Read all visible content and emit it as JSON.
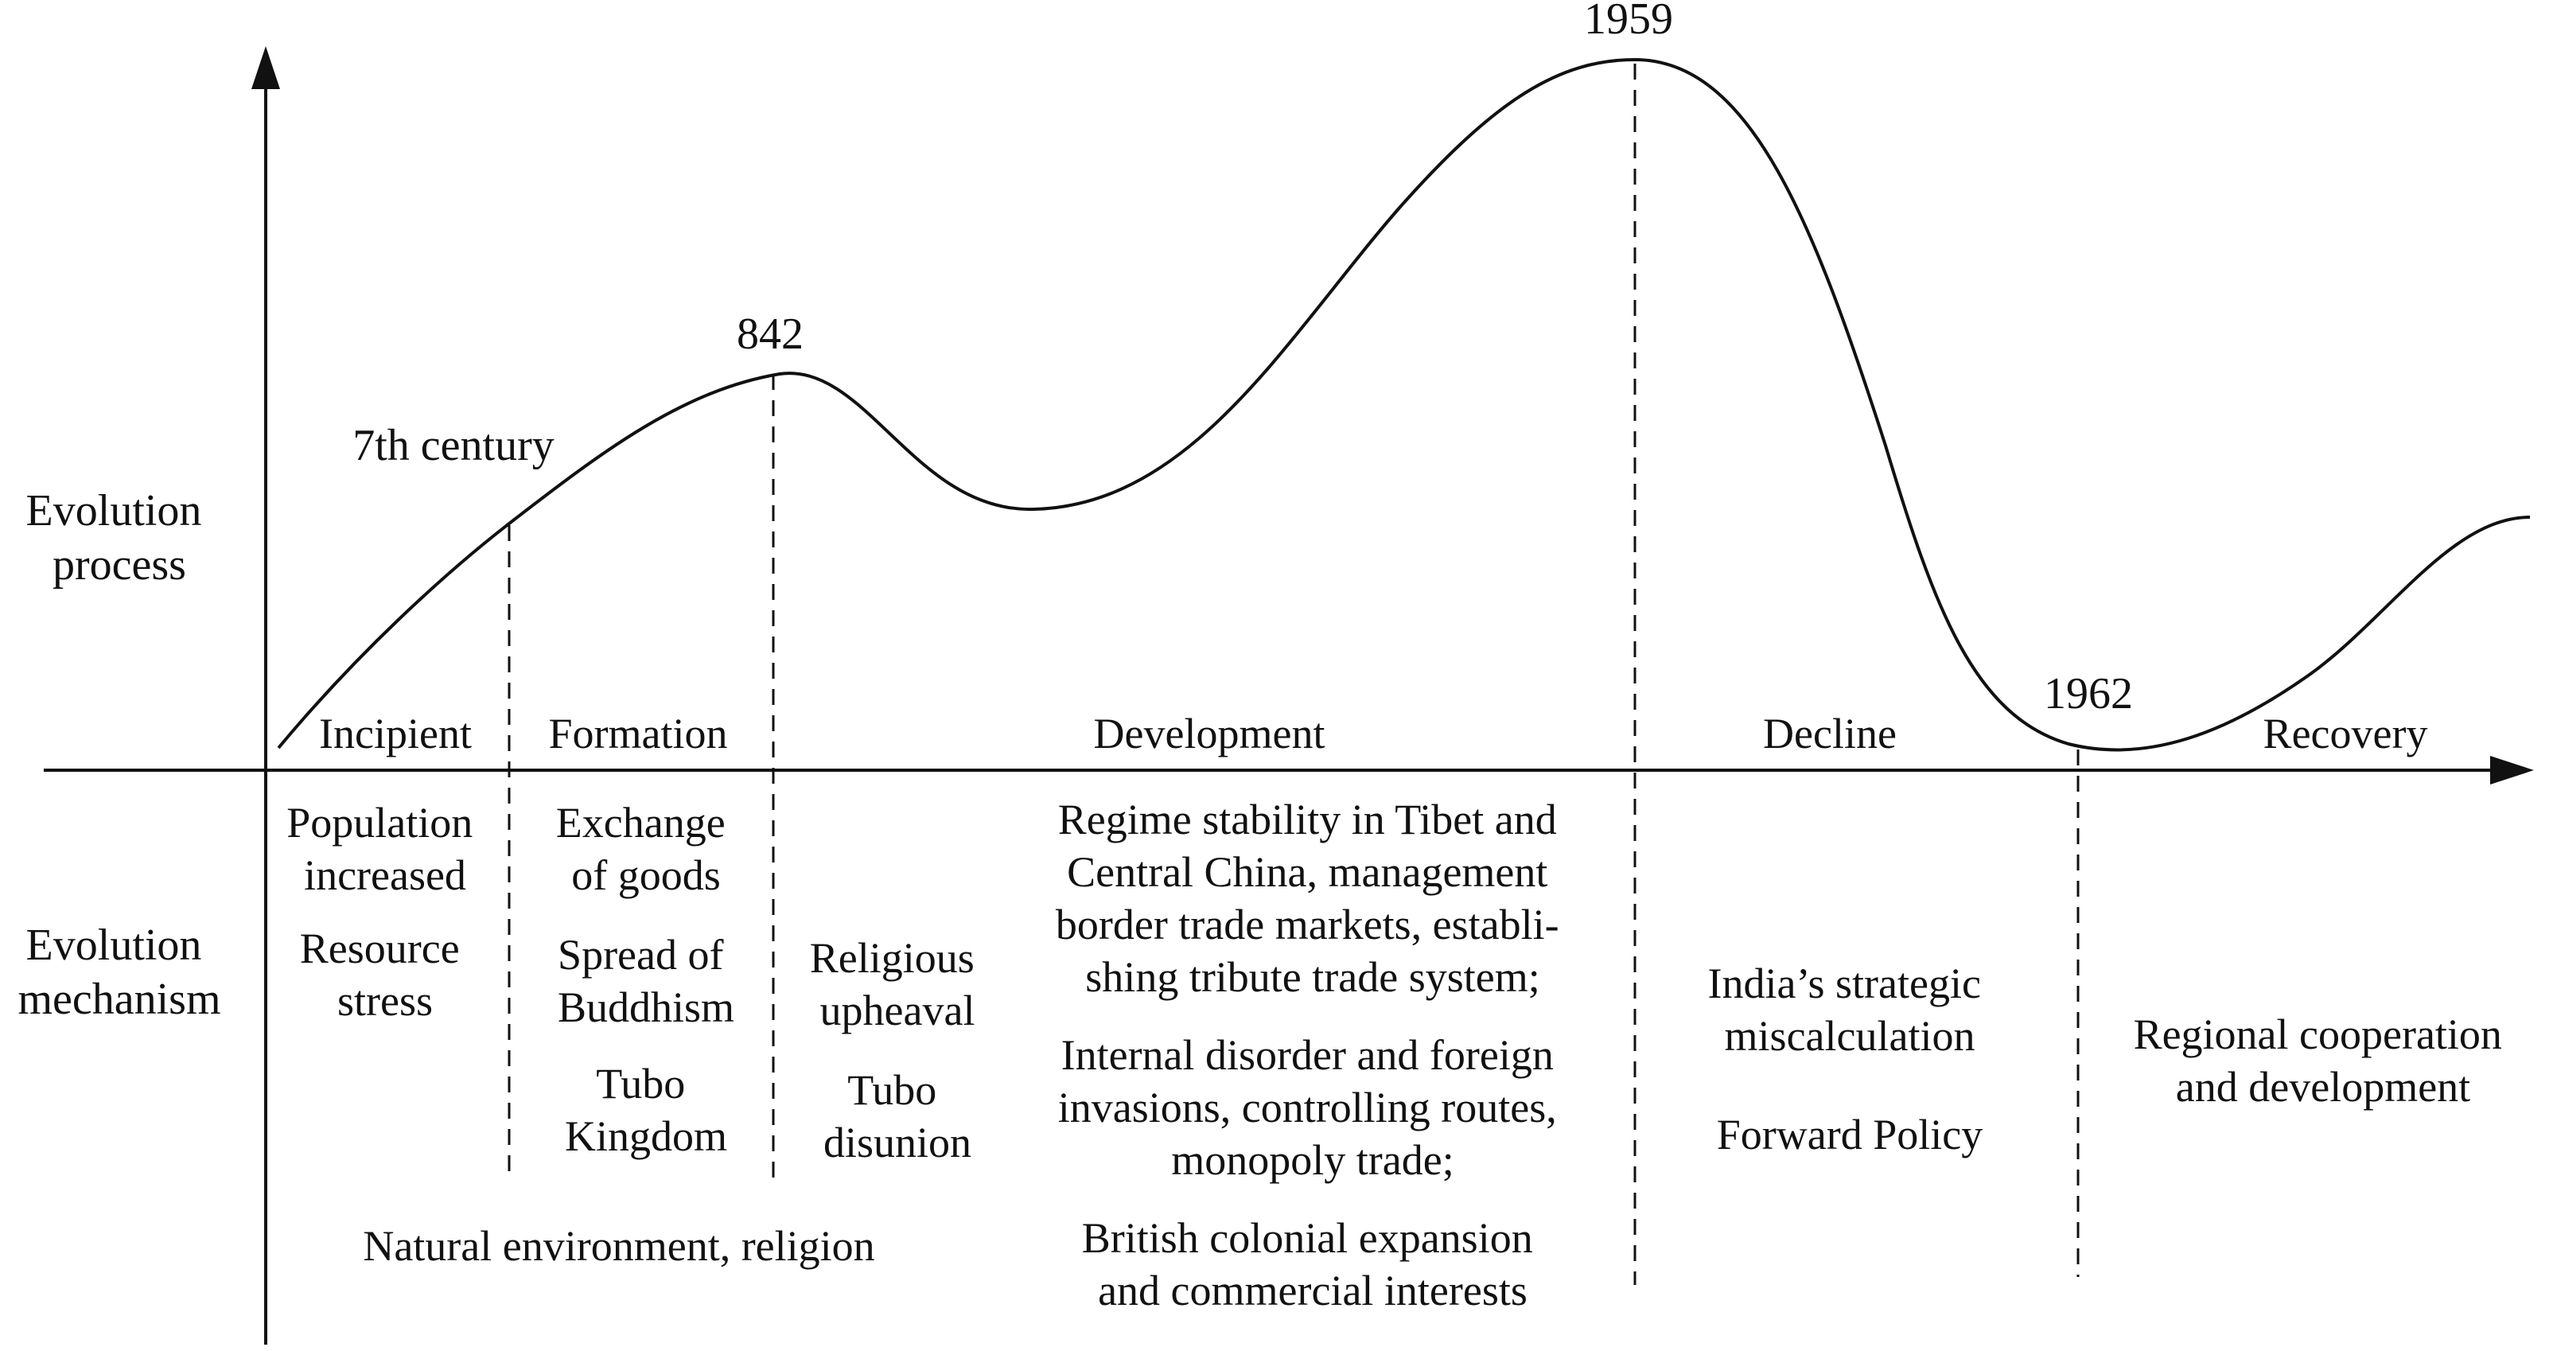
{
  "row_labels": {
    "process": [
      "Evolution",
      "process"
    ],
    "mechanism": [
      "Evolution",
      "mechanism"
    ]
  },
  "year_markers": {
    "seventh_century": "7th century",
    "y842": "842",
    "y1959": "1959",
    "y1962": "1962"
  },
  "stages": {
    "incipient": "Incipient",
    "formation": "Formation",
    "development": "Development",
    "decline": "Decline",
    "recovery": "Recovery"
  },
  "mechanisms": {
    "incipient": {
      "population": [
        "Population",
        "increased"
      ],
      "resource": [
        "Resource",
        "stress"
      ]
    },
    "formation": {
      "exchange": [
        "Exchange",
        "of goods"
      ],
      "buddhism": [
        "Spread of",
        "Buddhism"
      ],
      "tubo_kingdom": [
        "Tubo",
        "Kingdom"
      ]
    },
    "early_development": {
      "religious_upheaval": [
        "Religious",
        "upheaval"
      ],
      "tubo_disunion": [
        "Tubo",
        "disunion"
      ]
    },
    "shared_early": "Natural environment, religion",
    "development": {
      "regime": [
        "Regime stability in Tibet and",
        "Central China, management",
        "border trade markets, establi-",
        "shing  tribute trade system;"
      ],
      "internal": [
        "Internal disorder and foreign",
        "invasions, controlling routes,",
        "monopoly trade;"
      ],
      "british": [
        "British colonial expansion",
        "and commercial interests"
      ]
    },
    "decline": {
      "india": [
        "India’s strategic",
        "miscalculation"
      ],
      "forward": "Forward Policy"
    },
    "recovery": {
      "regional": [
        "Regional cooperation",
        "and development"
      ]
    }
  }
}
